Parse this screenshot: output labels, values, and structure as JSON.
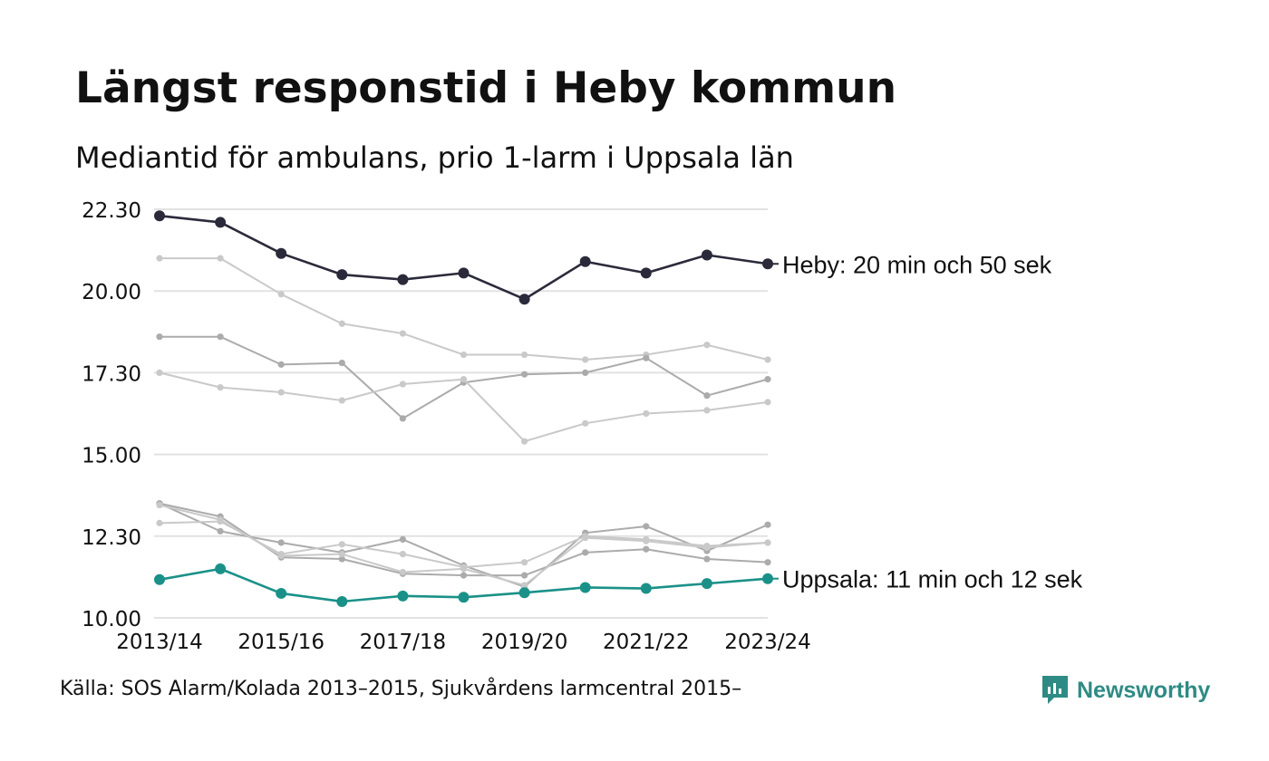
{
  "chart_data": {
    "type": "line",
    "title": "Längst responstid i Heby kommun",
    "subtitle": "Mediantid för ambulans, prio 1-larm i Uppsala län",
    "source": "Källa: SOS Alarm/Kolada 2013–2015, Sjukvårdens larmcentral 2015–",
    "brand": "Newsworthy",
    "x": [
      "2013/14",
      "2014/15",
      "2015/16",
      "2016/17",
      "2017/18",
      "2018/19",
      "2019/20",
      "2020/21",
      "2021/22",
      "2022/23",
      "2023/24"
    ],
    "x_tick_labels": [
      "2013/14",
      "2015/16",
      "2017/18",
      "2019/20",
      "2021/22",
      "2023/24"
    ],
    "y_ticks": [
      10,
      12.5,
      15,
      17.5,
      20,
      22.5
    ],
    "y_tick_labels": [
      "10.00",
      "12.30",
      "15.00",
      "17.30",
      "20.00",
      "22.30"
    ],
    "ylim": [
      10,
      22.5
    ],
    "grid": true,
    "colors": {
      "highlight": "#2b2a3a",
      "uppsala": "#1a9188",
      "light": "#c9c9c9",
      "mid": "#ababab",
      "grid": "#e2e2e2"
    },
    "series": [
      {
        "name": "",
        "role": "light",
        "values": [
          21.0,
          21.0,
          19.9,
          19.0,
          18.7,
          18.05,
          18.05,
          17.9,
          18.05,
          18.35,
          17.9
        ]
      },
      {
        "name": "",
        "role": "mid",
        "values": [
          18.6,
          18.6,
          17.75,
          17.8,
          16.1,
          17.2,
          17.45,
          17.5,
          17.95,
          16.8,
          17.3
        ]
      },
      {
        "name": "",
        "role": "light",
        "values": [
          17.5,
          17.05,
          16.9,
          16.65,
          17.15,
          17.3,
          15.4,
          15.95,
          16.25,
          16.35,
          16.6
        ]
      },
      {
        "name": "",
        "role": "mid",
        "values": [
          13.5,
          13.1,
          11.85,
          11.8,
          11.35,
          11.3,
          11.3,
          12.0,
          12.1,
          11.8,
          11.7
        ]
      },
      {
        "name": "",
        "role": "mid",
        "values": [
          13.5,
          12.65,
          12.3,
          12.0,
          12.4,
          11.6,
          10.95,
          12.6,
          12.8,
          12.05,
          12.85
        ]
      },
      {
        "name": "",
        "role": "light",
        "values": [
          12.9,
          12.95,
          11.95,
          12.25,
          11.95,
          11.55,
          11.7,
          12.5,
          12.4,
          12.2,
          12.3
        ]
      },
      {
        "name": "",
        "role": "light",
        "values": [
          13.45,
          13.0,
          11.9,
          11.95,
          11.4,
          11.5,
          11.0,
          12.45,
          12.35,
          12.15,
          12.3
        ]
      },
      {
        "name": "Uppsala",
        "role": "uppsala",
        "label": "Uppsala: 11 min och 12 sek",
        "values": [
          11.17,
          11.5,
          10.75,
          10.5,
          10.67,
          10.63,
          10.77,
          10.93,
          10.9,
          11.05,
          11.2
        ]
      },
      {
        "name": "Heby",
        "role": "highlight",
        "label": "Heby: 20 min och 50 sek",
        "values": [
          22.3,
          22.1,
          21.15,
          20.5,
          20.35,
          20.55,
          19.75,
          20.9,
          20.55,
          21.1,
          20.83
        ]
      }
    ]
  }
}
